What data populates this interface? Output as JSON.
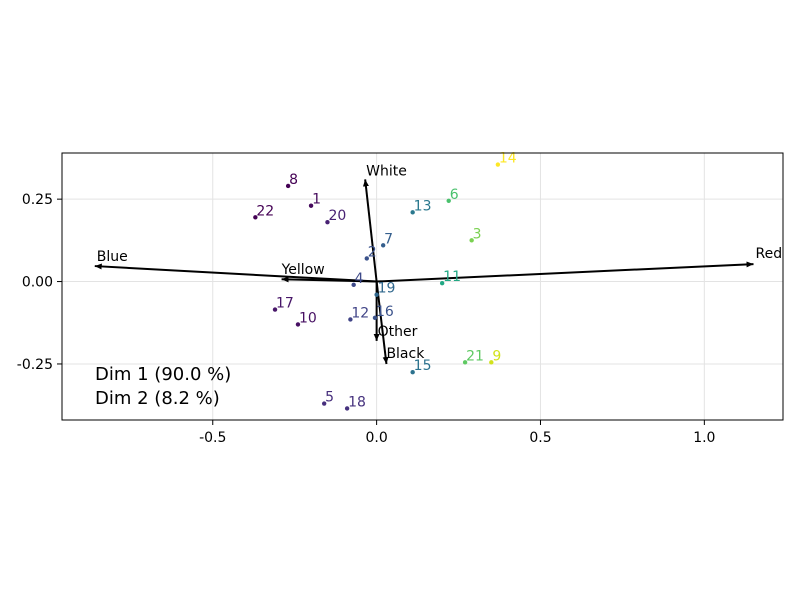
{
  "chart_data": {
    "type": "scatter",
    "title": "",
    "xlabel": "",
    "ylabel": "",
    "xlim": [
      -0.96,
      1.24
    ],
    "ylim": [
      -0.42,
      0.39
    ],
    "xticks": [
      "-0.5",
      "0.0",
      "0.5",
      "1.0"
    ],
    "xtick_values": [
      -0.5,
      0.0,
      0.5,
      1.0
    ],
    "yticks": [
      "-0.25",
      "0.00",
      "0.25"
    ],
    "ytick_values": [
      -0.25,
      0.0,
      0.25
    ],
    "grid": true,
    "points": [
      {
        "label": "1",
        "x": -0.2,
        "y": 0.23,
        "color": "#450a5c"
      },
      {
        "label": "2",
        "x": -0.03,
        "y": 0.07,
        "color": "#3b528b"
      },
      {
        "label": "3",
        "x": 0.29,
        "y": 0.125,
        "color": "#7ad151"
      },
      {
        "label": "4",
        "x": -0.07,
        "y": -0.01,
        "color": "#3e4a89"
      },
      {
        "label": "5",
        "x": -0.16,
        "y": -0.37,
        "color": "#472f7d"
      },
      {
        "label": "6",
        "x": 0.22,
        "y": 0.245,
        "color": "#4ac16d"
      },
      {
        "label": "7",
        "x": 0.02,
        "y": 0.11,
        "color": "#355f8d"
      },
      {
        "label": "8",
        "x": -0.27,
        "y": 0.29,
        "color": "#440154"
      },
      {
        "label": "9",
        "x": 0.35,
        "y": -0.245,
        "color": "#d2e21b"
      },
      {
        "label": "10",
        "x": -0.24,
        "y": -0.13,
        "color": "#471063"
      },
      {
        "label": "11",
        "x": 0.2,
        "y": -0.005,
        "color": "#22a884"
      },
      {
        "label": "12",
        "x": -0.08,
        "y": -0.115,
        "color": "#414487"
      },
      {
        "label": "13",
        "x": 0.11,
        "y": 0.21,
        "color": "#2a788e"
      },
      {
        "label": "14",
        "x": 0.37,
        "y": 0.355,
        "color": "#fde725"
      },
      {
        "label": "15",
        "x": 0.11,
        "y": -0.275,
        "color": "#2c728e"
      },
      {
        "label": "16",
        "x": -0.005,
        "y": -0.11,
        "color": "#3b528b"
      },
      {
        "label": "17",
        "x": -0.31,
        "y": -0.085,
        "color": "#481769"
      },
      {
        "label": "18",
        "x": -0.09,
        "y": -0.385,
        "color": "#46327e"
      },
      {
        "label": "19",
        "x": 0.0,
        "y": -0.04,
        "color": "#31688e"
      },
      {
        "label": "20",
        "x": -0.15,
        "y": 0.18,
        "color": "#482173"
      },
      {
        "label": "21",
        "x": 0.27,
        "y": -0.245,
        "color": "#5ec962"
      },
      {
        "label": "22",
        "x": -0.37,
        "y": 0.195,
        "color": "#440154"
      }
    ],
    "vectors": [
      {
        "label": "Red",
        "x": 1.15,
        "y": 0.053
      },
      {
        "label": "Blue",
        "x": -0.86,
        "y": 0.047
      },
      {
        "label": "Yellow",
        "x": -0.29,
        "y": 0.007
      },
      {
        "label": "White",
        "x": -0.035,
        "y": 0.31
      },
      {
        "label": "Other",
        "x": 0.0,
        "y": -0.18
      },
      {
        "label": "Black",
        "x": 0.03,
        "y": -0.25
      }
    ],
    "annotations": [
      "Dim 1 (90.0 %)",
      "Dim 2 (8.2 %)"
    ]
  }
}
